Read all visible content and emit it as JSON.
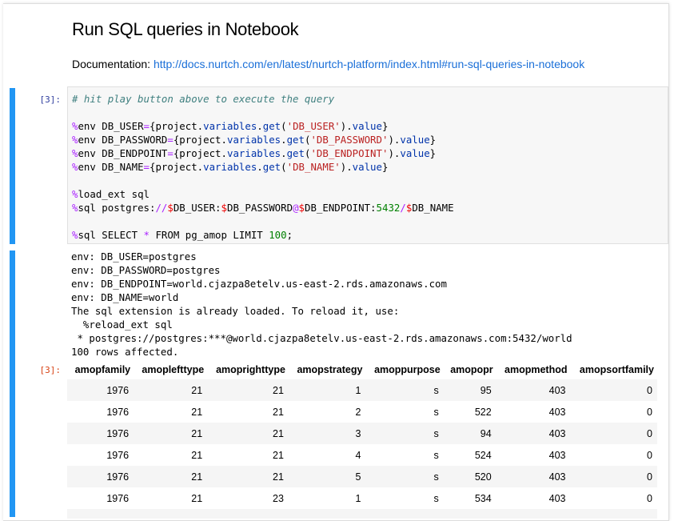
{
  "header": {
    "title": "Run SQL queries in Notebook",
    "doc_label": "Documentation: ",
    "doc_link": "http://docs.nurtch.com/en/latest/nurtch-platform/index.html#run-sql-queries-in-notebook"
  },
  "colors": {
    "accent": "#2196f3",
    "link": "#1a6fd8",
    "code_bg": "#f7f7f7"
  },
  "input_cell": {
    "prompt": "[3]:",
    "code_lines": [
      [
        [
          "# hit play button above to execute the query",
          "c"
        ]
      ],
      [],
      [
        [
          "%",
          "m"
        ],
        [
          "env DB_USER",
          ""
        ],
        [
          "=",
          "m"
        ],
        [
          "{project.",
          ""
        ],
        [
          "variables",
          "b"
        ],
        [
          ".",
          ""
        ],
        [
          "get",
          "b"
        ],
        [
          "(",
          ""
        ],
        [
          "'DB_USER'",
          "s"
        ],
        [
          ").",
          ""
        ],
        [
          "value",
          "b"
        ],
        [
          "}",
          ""
        ]
      ],
      [
        [
          "%",
          "m"
        ],
        [
          "env DB_PASSWORD",
          ""
        ],
        [
          "=",
          "m"
        ],
        [
          "{project.",
          ""
        ],
        [
          "variables",
          "b"
        ],
        [
          ".",
          ""
        ],
        [
          "get",
          "b"
        ],
        [
          "(",
          ""
        ],
        [
          "'DB_PASSWORD'",
          "s"
        ],
        [
          ").",
          ""
        ],
        [
          "value",
          "b"
        ],
        [
          "}",
          ""
        ]
      ],
      [
        [
          "%",
          "m"
        ],
        [
          "env DB_ENDPOINT",
          ""
        ],
        [
          "=",
          "m"
        ],
        [
          "{project.",
          ""
        ],
        [
          "variables",
          "b"
        ],
        [
          ".",
          ""
        ],
        [
          "get",
          "b"
        ],
        [
          "(",
          ""
        ],
        [
          "'DB_ENDPOINT'",
          "s"
        ],
        [
          ").",
          ""
        ],
        [
          "value",
          "b"
        ],
        [
          "}",
          ""
        ]
      ],
      [
        [
          "%",
          "m"
        ],
        [
          "env DB_NAME",
          ""
        ],
        [
          "=",
          "m"
        ],
        [
          "{project.",
          ""
        ],
        [
          "variables",
          "b"
        ],
        [
          ".",
          ""
        ],
        [
          "get",
          "b"
        ],
        [
          "(",
          ""
        ],
        [
          "'DB_NAME'",
          "s"
        ],
        [
          ").",
          ""
        ],
        [
          "value",
          "b"
        ],
        [
          "}",
          ""
        ]
      ],
      [],
      [
        [
          "%",
          "m"
        ],
        [
          "load_ext sql",
          ""
        ]
      ],
      [
        [
          "%",
          "m"
        ],
        [
          "sql postgres:",
          ""
        ],
        [
          "//",
          "m"
        ],
        [
          "$",
          "d"
        ],
        [
          "DB_USER:",
          ""
        ],
        [
          "$",
          "d"
        ],
        [
          "DB_PASSWORD",
          ""
        ],
        [
          "@",
          "m"
        ],
        [
          "$",
          "d"
        ],
        [
          "DB_ENDPOINT:",
          ""
        ],
        [
          "5432",
          "n"
        ],
        [
          "/",
          "m"
        ],
        [
          "$",
          "d"
        ],
        [
          "DB_NAME",
          ""
        ]
      ],
      [],
      [
        [
          "%",
          "m"
        ],
        [
          "sql SELECT ",
          ""
        ],
        [
          "*",
          "m"
        ],
        [
          " FROM pg_amop LIMIT ",
          ""
        ],
        [
          "100",
          "n"
        ],
        [
          ";",
          ""
        ]
      ]
    ]
  },
  "output_cell": {
    "prompt": "[3]:",
    "stdout": [
      "env: DB_USER=postgres",
      "env: DB_PASSWORD=postgres",
      "env: DB_ENDPOINT=world.cjazpa8etelv.us-east-2.rds.amazonaws.com",
      "env: DB_NAME=world",
      "The sql extension is already loaded. To reload it, use:",
      "  %reload_ext sql",
      " * postgres://postgres:***@world.cjazpa8etelv.us-east-2.rds.amazonaws.com:5432/world",
      "100 rows affected."
    ],
    "table": {
      "columns": [
        "amopfamily",
        "amoplefttype",
        "amoprighttype",
        "amopstrategy",
        "amoppurpose",
        "amopopr",
        "amopmethod",
        "amopsortfamily"
      ],
      "rows": [
        [
          "1976",
          "21",
          "21",
          "1",
          "s",
          "95",
          "403",
          "0"
        ],
        [
          "1976",
          "21",
          "21",
          "2",
          "s",
          "522",
          "403",
          "0"
        ],
        [
          "1976",
          "21",
          "21",
          "3",
          "s",
          "94",
          "403",
          "0"
        ],
        [
          "1976",
          "21",
          "21",
          "4",
          "s",
          "524",
          "403",
          "0"
        ],
        [
          "1976",
          "21",
          "21",
          "5",
          "s",
          "520",
          "403",
          "0"
        ],
        [
          "1976",
          "21",
          "23",
          "1",
          "s",
          "534",
          "403",
          "0"
        ]
      ]
    }
  }
}
